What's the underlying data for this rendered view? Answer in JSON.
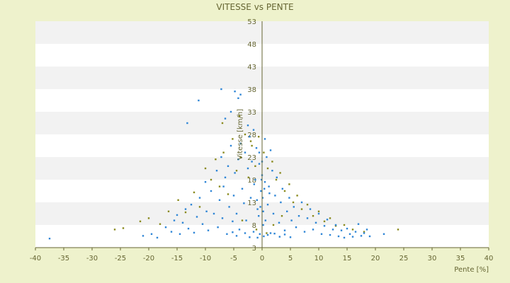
{
  "chart_data": {
    "type": "scatter",
    "title": "VITESSE vs PENTE",
    "xlabel": "Pente [%]",
    "ylabel": "Vitesse [km/h]",
    "xlim": [
      -40,
      40
    ],
    "ylim": [
      3,
      53
    ],
    "x_ticks": [
      "-40",
      "-35",
      "-30",
      "-25",
      "-20",
      "-15",
      "-10",
      "-5",
      "0",
      "5",
      "10",
      "15",
      "20",
      "25",
      "30",
      "35",
      "40"
    ],
    "y_ticks": [
      "3",
      "8",
      "13",
      "18",
      "23",
      "28",
      "33",
      "38",
      "43",
      "48",
      "53"
    ],
    "grid": "horizontal alternating bands",
    "legend": "none",
    "colors": {
      "background": "#eef2cc",
      "plot_band_light": "#ffffff",
      "plot_band_dark": "#f2f2f2",
      "axis": "#666633",
      "series_1": "#2f86d6",
      "series_2": "#8a8a1e"
    },
    "series": [
      {
        "color": "#2f86d6",
        "points": [
          [
            -37.5,
            5.0
          ],
          [
            -21,
            5.6
          ],
          [
            -19.5,
            6.0
          ],
          [
            -18.5,
            5.2
          ],
          [
            -17,
            7.5
          ],
          [
            -16,
            6.5
          ],
          [
            -15.5,
            9.0
          ],
          [
            -15,
            10.2
          ],
          [
            -14.5,
            6.0
          ],
          [
            -14,
            8.5
          ],
          [
            -13.5,
            11.5
          ],
          [
            -13,
            7.2
          ],
          [
            -12.5,
            12.5
          ],
          [
            -12,
            6.3
          ],
          [
            -11.5,
            9.8
          ],
          [
            -11,
            14.0
          ],
          [
            -10.5,
            8.2
          ],
          [
            -10,
            17.5
          ],
          [
            -9.8,
            11.0
          ],
          [
            -9.5,
            6.8
          ],
          [
            -9,
            15.5
          ],
          [
            -8.5,
            10.5
          ],
          [
            -8,
            20.0
          ],
          [
            -7.8,
            7.5
          ],
          [
            -7.5,
            13.5
          ],
          [
            -7.2,
            23.0
          ],
          [
            -7,
            9.5
          ],
          [
            -6.8,
            16.5
          ],
          [
            -6.5,
            18.5
          ],
          [
            -6.2,
            6.0
          ],
          [
            -6,
            21.0
          ],
          [
            -5.8,
            12.0
          ],
          [
            -5.5,
            25.5
          ],
          [
            -5.2,
            8.8
          ],
          [
            -5,
            14.5
          ],
          [
            -4.8,
            19.5
          ],
          [
            -4.5,
            10.5
          ],
          [
            -4.2,
            22.5
          ],
          [
            -4,
            7.0
          ],
          [
            -3.8,
            26.0
          ],
          [
            -3.5,
            16.0
          ],
          [
            -3.2,
            12.8
          ],
          [
            -3,
            24.0
          ],
          [
            -2.8,
            9.0
          ],
          [
            -2.5,
            20.5
          ],
          [
            -2.2,
            27.5
          ],
          [
            -2,
            14.0
          ],
          [
            -1.8,
            22.0
          ],
          [
            -1.5,
            6.5
          ],
          [
            -1.2,
            18.0
          ],
          [
            -1,
            25.0
          ],
          [
            -0.8,
            11.5
          ],
          [
            -0.5,
            21.5
          ],
          [
            -0.2,
            15.5
          ],
          [
            0,
            19.0
          ],
          [
            0.2,
            8.0
          ],
          [
            0.5,
            17.5
          ],
          [
            0.8,
            23.0
          ],
          [
            1,
            12.5
          ],
          [
            1.2,
            16.5
          ],
          [
            1.5,
            6.2
          ],
          [
            1.8,
            20.0
          ],
          [
            2,
            10.5
          ],
          [
            2.3,
            14.5
          ],
          [
            2.6,
            18.5
          ],
          [
            3,
            8.5
          ],
          [
            3.3,
            13.0
          ],
          [
            3.6,
            16.0
          ],
          [
            4,
            6.8
          ],
          [
            4.4,
            11.0
          ],
          [
            4.8,
            14.0
          ],
          [
            5.2,
            9.0
          ],
          [
            5.6,
            12.0
          ],
          [
            6,
            7.5
          ],
          [
            6.5,
            10.0
          ],
          [
            7,
            13.0
          ],
          [
            7.5,
            6.5
          ],
          [
            8,
            9.5
          ],
          [
            8.5,
            11.5
          ],
          [
            9,
            7.0
          ],
          [
            9.5,
            8.5
          ],
          [
            10,
            10.5
          ],
          [
            10.5,
            6.0
          ],
          [
            11,
            7.8
          ],
          [
            11.5,
            9.2
          ],
          [
            12,
            5.8
          ],
          [
            12.5,
            7.0
          ],
          [
            13,
            8.0
          ],
          [
            13.5,
            5.5
          ],
          [
            14,
            6.8
          ],
          [
            14.5,
            5.2
          ],
          [
            15,
            7.2
          ],
          [
            15.5,
            6.0
          ],
          [
            16,
            5.4
          ],
          [
            16.5,
            6.5
          ],
          [
            17,
            8.2
          ],
          [
            17.5,
            5.6
          ],
          [
            18,
            6.2
          ],
          [
            18.5,
            7.0
          ],
          [
            19,
            5.5
          ],
          [
            21.5,
            6.0
          ],
          [
            -11.2,
            35.5
          ],
          [
            -13.2,
            30.5
          ],
          [
            -7.2,
            38.0
          ],
          [
            -4.8,
            37.5
          ],
          [
            -4.2,
            36.0
          ],
          [
            -3.8,
            36.8
          ],
          [
            -6.5,
            31.5
          ],
          [
            -5.5,
            33.0
          ],
          [
            -2.5,
            30.0
          ],
          [
            -1.5,
            29.0
          ],
          [
            0.5,
            27.0
          ],
          [
            1.5,
            24.5
          ],
          [
            -0.8,
            5.2
          ],
          [
            -0.4,
            6.0
          ],
          [
            0.3,
            5.5
          ],
          [
            1.0,
            5.8
          ],
          [
            -2.2,
            5.3
          ],
          [
            -3.0,
            6.2
          ],
          [
            2.2,
            6.1
          ],
          [
            3.1,
            5.4
          ],
          [
            4.0,
            5.9
          ],
          [
            5.0,
            5.3
          ],
          [
            -4.5,
            5.6
          ],
          [
            -5.2,
            6.4
          ],
          [
            -0.6,
            10.0
          ],
          [
            -0.3,
            12.0
          ],
          [
            0.1,
            14.0
          ],
          [
            0.4,
            16.0
          ],
          [
            -0.1,
            18.0
          ],
          [
            0.0,
            22.0
          ],
          [
            -0.5,
            24.0
          ],
          [
            0.2,
            11.0
          ],
          [
            0.6,
            9.0
          ],
          [
            -0.9,
            13.5
          ],
          [
            1.3,
            15.0
          ],
          [
            -1.4,
            17.0
          ]
        ]
      },
      {
        "color": "#8a8a1e",
        "points": [
          [
            -26,
            7.0
          ],
          [
            -24.5,
            7.3
          ],
          [
            -21.5,
            8.8
          ],
          [
            -20,
            9.5
          ],
          [
            -18,
            8.2
          ],
          [
            -16.5,
            11.0
          ],
          [
            -14.8,
            13.5
          ],
          [
            -13.5,
            10.8
          ],
          [
            -12,
            15.2
          ],
          [
            -11,
            12.0
          ],
          [
            -10,
            20.5
          ],
          [
            -9,
            18.0
          ],
          [
            -8.2,
            22.5
          ],
          [
            -7.5,
            16.5
          ],
          [
            -6.8,
            24.0
          ],
          [
            -6,
            14.8
          ],
          [
            -5.2,
            27.0
          ],
          [
            -4.5,
            20.0
          ],
          [
            -3.8,
            23.0
          ],
          [
            -3,
            28.0
          ],
          [
            -2.4,
            18.5
          ],
          [
            -1.8,
            25.5
          ],
          [
            -1.2,
            21.0
          ],
          [
            -0.6,
            27.5
          ],
          [
            0.3,
            24.0
          ],
          [
            1.0,
            20.5
          ],
          [
            1.8,
            22.0
          ],
          [
            2.5,
            18.0
          ],
          [
            3.2,
            19.5
          ],
          [
            4.0,
            15.5
          ],
          [
            4.8,
            17.0
          ],
          [
            5.5,
            13.0
          ],
          [
            6.2,
            14.5
          ],
          [
            7.0,
            11.5
          ],
          [
            8.0,
            12.5
          ],
          [
            9.0,
            10.0
          ],
          [
            10.0,
            11.0
          ],
          [
            11.0,
            8.8
          ],
          [
            12.0,
            9.5
          ],
          [
            13.0,
            7.8
          ],
          [
            14.5,
            8.0
          ],
          [
            16.0,
            7.0
          ],
          [
            18.0,
            6.5
          ],
          [
            24.0,
            7.0
          ],
          [
            -7.0,
            30.5
          ],
          [
            -4.0,
            32.0
          ],
          [
            -2.0,
            26.5
          ],
          [
            0.8,
            6.2
          ],
          [
            -1.0,
            7.0
          ],
          [
            2.0,
            8.0
          ],
          [
            -3.5,
            9.0
          ],
          [
            3.5,
            10.0
          ]
        ]
      }
    ]
  }
}
